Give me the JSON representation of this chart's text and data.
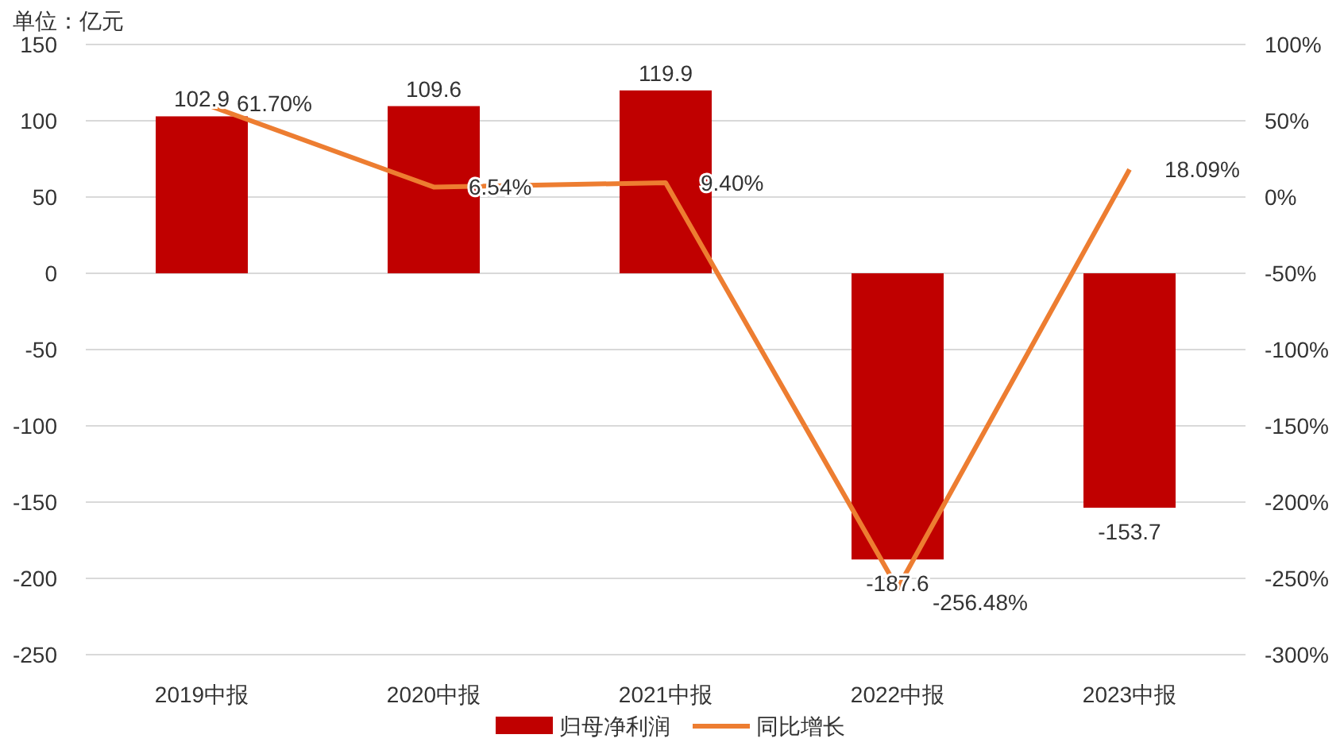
{
  "chart_data": {
    "type": "bar",
    "ylabel": "单位：亿元",
    "categories": [
      "2019中报",
      "2020中报",
      "2021中报",
      "2022中报",
      "2023中报"
    ],
    "series": [
      {
        "name": "归母净利润",
        "color": "#c00000",
        "values": [
          102.9,
          109.6,
          119.9,
          -187.6,
          -153.7
        ],
        "value_labels": [
          "102.9",
          "109.6",
          "119.9",
          "-187.6",
          "-153.7"
        ]
      },
      {
        "name": "同比增长",
        "type": "line",
        "axis": "y2",
        "color": "#ed7d31",
        "values": [
          61.7,
          6.54,
          9.4,
          -256.48,
          18.09
        ],
        "value_labels": [
          "61.70%",
          "6.54%",
          "9.40%",
          "-256.48%",
          "18.09%"
        ],
        "marker": "none",
        "line_style": "solid"
      }
    ],
    "ylim": [
      -250,
      150
    ],
    "yticks": [
      -250,
      -200,
      -150,
      -100,
      -50,
      0,
      50,
      100,
      150
    ],
    "y2lim": [
      -300,
      100
    ],
    "y2ticks": [
      {
        "value": -300,
        "label": "-300%"
      },
      {
        "value": -250,
        "label": "-250%"
      },
      {
        "value": -200,
        "label": "-200%"
      },
      {
        "value": -150,
        "label": "-150%"
      },
      {
        "value": -100,
        "label": "-100%"
      },
      {
        "value": -50,
        "label": "-50%"
      },
      {
        "value": 0,
        "label": "0%"
      },
      {
        "value": 50,
        "label": "50%"
      },
      {
        "value": 100,
        "label": "100%"
      }
    ],
    "grid": "y",
    "legend": "bottom"
  }
}
